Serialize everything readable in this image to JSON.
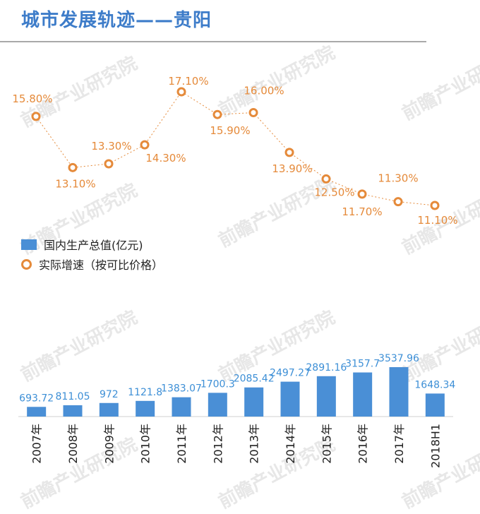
{
  "title": "城市发展轨迹——贵阳",
  "legend": {
    "gdp": "国内生产总值(亿元)",
    "growth": "实际增速（按可比价格）"
  },
  "colors": {
    "bar": "#4a8fd6",
    "bar_label": "#3d8fd6",
    "line": "#e58a3a",
    "title": "#3d7cc9"
  },
  "chart_data": {
    "type": "bar+line",
    "categories": [
      "2007年",
      "2008年",
      "2009年",
      "2010年",
      "2011年",
      "2012年",
      "2013年",
      "2014年",
      "2015年",
      "2016年",
      "2017年",
      "2018H1"
    ],
    "series": [
      {
        "name": "国内生产总值(亿元)",
        "type": "bar",
        "values": [
          693.72,
          811.05,
          972,
          1121.8,
          1383.07,
          1700.3,
          2085.42,
          2497.27,
          2891.16,
          3157.7,
          3537.96,
          1648.34
        ],
        "labels": [
          "693.72",
          "811.05",
          "972",
          "1121.8",
          "1383.07",
          "1700.3",
          "2085.42",
          "2497.27",
          "2891.16",
          "3157.7",
          "3537.96",
          "1648.34"
        ]
      },
      {
        "name": "实际增速（按可比价格）",
        "type": "line",
        "values": [
          15.8,
          13.1,
          13.3,
          14.3,
          17.1,
          15.9,
          16.0,
          13.9,
          12.5,
          11.7,
          11.3,
          11.1
        ],
        "labels": [
          "15.80%",
          "13.10%",
          "13.30%",
          "14.30%",
          "17.10%",
          "15.90%",
          "16.00%",
          "13.90%",
          "12.50%",
          "11.70%",
          "11.30%",
          "11.10%"
        ]
      }
    ],
    "grid": false,
    "legend_position": "middle-left"
  },
  "watermark": "前瞻产业研究院"
}
